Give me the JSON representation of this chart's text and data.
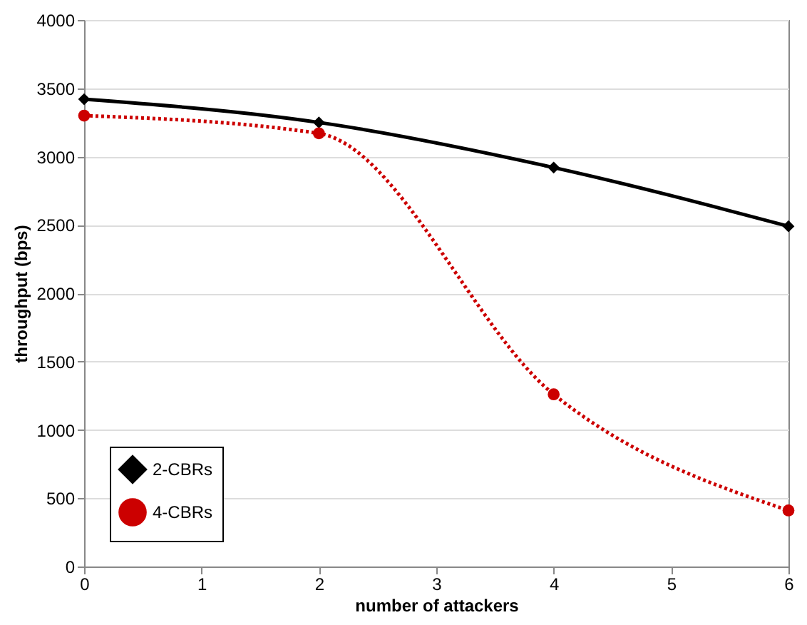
{
  "chart_data": {
    "type": "line",
    "xlabel": "number of attackers",
    "ylabel": "throughput (bps)",
    "x": [
      0,
      2,
      4,
      6
    ],
    "xlim": [
      0,
      6
    ],
    "xticks": [
      0,
      1,
      2,
      3,
      4,
      5,
      6
    ],
    "ylim": [
      0,
      4000
    ],
    "yticks": [
      0,
      500,
      1000,
      1500,
      2000,
      2500,
      3000,
      3500,
      4000
    ],
    "grid": "y",
    "legend": "bottom left",
    "series": [
      {
        "name": "2-CBRs",
        "color": "#000000",
        "values": [
          3420,
          3250,
          2920,
          2490
        ],
        "marker": "diamond",
        "line_style": "solid"
      },
      {
        "name": "4-CBRs",
        "color": "#cc0000",
        "values": [
          3300,
          3170,
          1260,
          410
        ],
        "marker": "circle",
        "line_style": "dotted"
      }
    ]
  }
}
